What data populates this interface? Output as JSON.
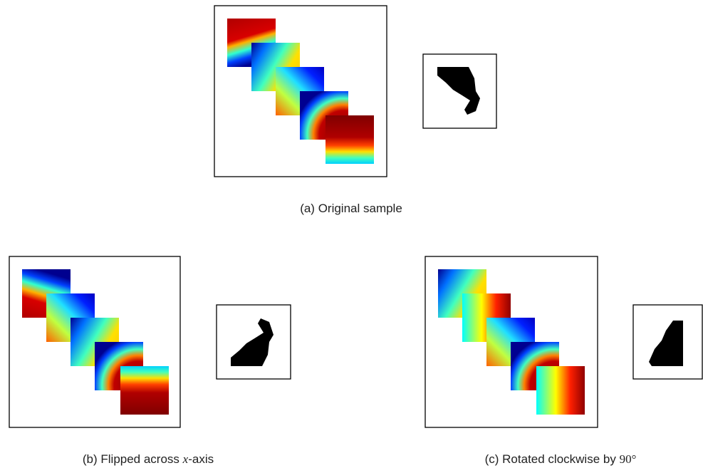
{
  "figure": {
    "panels": [
      {
        "caption_parts": [
          "(a) Original sample"
        ]
      },
      {
        "caption_parts": [
          "(b) Flipped across ",
          "x",
          "-axis"
        ]
      },
      {
        "caption_parts": [
          "(c) Rotated clockwise by ",
          "90°"
        ]
      }
    ]
  }
}
